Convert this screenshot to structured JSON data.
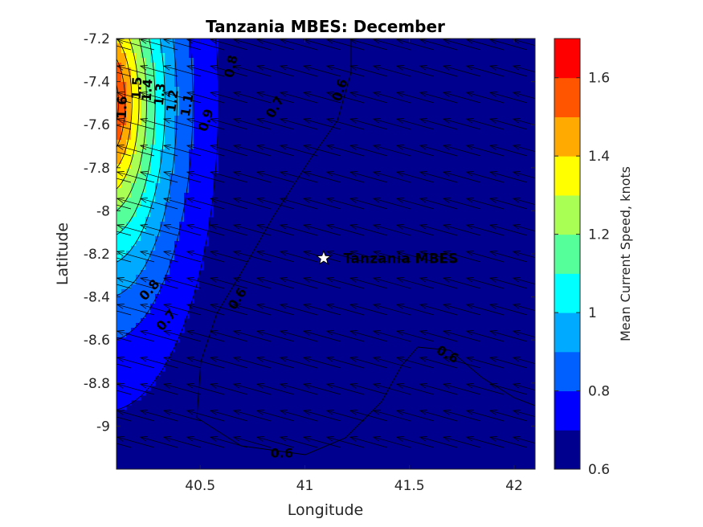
{
  "chart_data": {
    "type": "heatmap",
    "title": "Tanzania MBES: December",
    "xlabel": "Longitude",
    "ylabel": "Latitude",
    "xlim": [
      40.1,
      42.1
    ],
    "ylim": [
      -9.2,
      -7.2
    ],
    "xticks": [
      40.5,
      41,
      41.5,
      42
    ],
    "xtick_labels": [
      "40.5",
      "41",
      "41.5",
      "42"
    ],
    "yticks": [
      -7.2,
      -7.4,
      -7.6,
      -7.8,
      -8,
      -8.2,
      -8.4,
      -8.6,
      -8.8,
      -9
    ],
    "ytick_labels": [
      "-7.2",
      "-7.4",
      "-7.6",
      "-7.8",
      "-8",
      "-8.2",
      "-8.4",
      "-8.6",
      "-8.8",
      "-9"
    ],
    "colorbar": {
      "label": "Mean Current Speed, knots",
      "levels": [
        0.6,
        0.7,
        0.8,
        0.9,
        1.0,
        1.1,
        1.2,
        1.3,
        1.4,
        1.5,
        1.6,
        1.7
      ],
      "ticks": [
        0.6,
        0.8,
        1,
        1.2,
        1.4,
        1.6
      ],
      "tick_labels": [
        "0.6",
        "0.8",
        "1",
        "1.2",
        "1.4",
        "1.6"
      ],
      "colors": [
        "#00008f",
        "#0000ff",
        "#0060ff",
        "#00aaff",
        "#00ffff",
        "#55ff99",
        "#aaff55",
        "#ffff00",
        "#ffaa00",
        "#ff5500",
        "#ff0000"
      ]
    },
    "contour_labels": [
      {
        "text": "0.6",
        "lon": 41.17,
        "lat": -7.44,
        "angle": -72
      },
      {
        "text": "0.6",
        "lon": 40.68,
        "lat": -8.41,
        "angle": -58
      },
      {
        "text": "0.6",
        "lon": 41.68,
        "lat": -8.67,
        "angle": 28
      },
      {
        "text": "0.6",
        "lon": 40.89,
        "lat": -9.13,
        "angle": 0
      },
      {
        "text": "0.7",
        "lon": 40.86,
        "lat": -7.52,
        "angle": -60
      },
      {
        "text": "0.7",
        "lon": 40.34,
        "lat": -8.51,
        "angle": -50
      },
      {
        "text": "0.8",
        "lon": 40.65,
        "lat": -7.33,
        "angle": -78
      },
      {
        "text": "0.8",
        "lon": 40.26,
        "lat": -8.37,
        "angle": -48
      },
      {
        "text": "0.9",
        "lon": 40.53,
        "lat": -7.58,
        "angle": -72
      },
      {
        "text": "1.1",
        "lon": 40.44,
        "lat": -7.51,
        "angle": -80
      },
      {
        "text": "1.2",
        "lon": 40.37,
        "lat": -7.49,
        "angle": -82
      },
      {
        "text": "1.3",
        "lon": 40.31,
        "lat": -7.46,
        "angle": -84
      },
      {
        "text": "1.4",
        "lon": 40.25,
        "lat": -7.44,
        "angle": -86
      },
      {
        "text": "1.5",
        "lon": 40.2,
        "lat": -7.43,
        "angle": -87
      },
      {
        "text": "1.6",
        "lon": 40.13,
        "lat": -7.52,
        "angle": -88
      }
    ],
    "marker": {
      "label": "Tanzania MBES",
      "lon": 41.09,
      "lat": -8.22,
      "symbol": "star"
    },
    "flow": {
      "direction": "toward west-northwest",
      "arrows": "uniform grid of current vectors"
    }
  }
}
